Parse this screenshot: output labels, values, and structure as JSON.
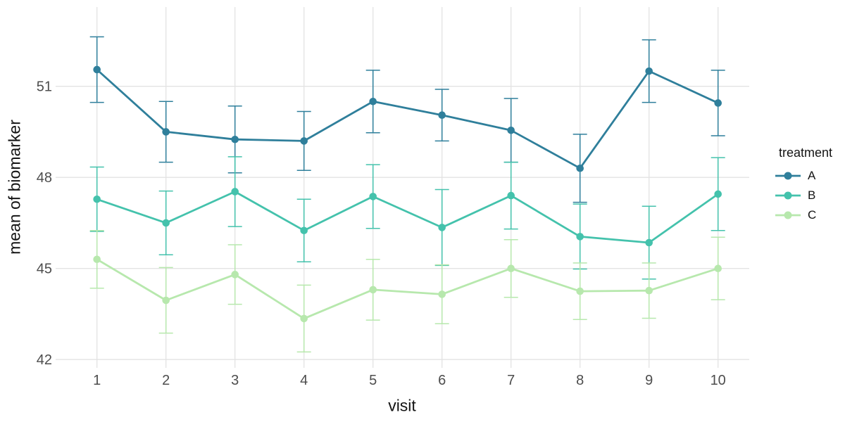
{
  "chart_data": {
    "type": "line",
    "title": "",
    "xlabel": "visit",
    "ylabel": "mean of biomarker",
    "legend_title": "treatment",
    "legend_position": "right",
    "grid": "major-only",
    "x": [
      1,
      2,
      3,
      4,
      5,
      6,
      7,
      8,
      9,
      10
    ],
    "x_tick_labels": [
      "1",
      "2",
      "3",
      "4",
      "5",
      "6",
      "7",
      "8",
      "9",
      "10"
    ],
    "y_ticks": [
      42,
      45,
      48,
      51
    ],
    "ylim": [
      41.7,
      53.6
    ],
    "xlim": [
      0.55,
      10.45
    ],
    "error_bars": true,
    "colors": {
      "grid": "#e3e3e3",
      "tick_text": "#4d4d4d",
      "axis_title_text": "#141414",
      "background": "#ffffff"
    },
    "series": [
      {
        "name": "A",
        "color": "#2f7f9b",
        "values": [
          51.55,
          49.5,
          49.25,
          49.2,
          50.5,
          50.05,
          49.55,
          48.3,
          51.5,
          50.45
        ],
        "errors": [
          1.08,
          1.0,
          1.1,
          0.97,
          1.03,
          0.85,
          1.05,
          1.12,
          1.03,
          1.08
        ]
      },
      {
        "name": "B",
        "color": "#44c2ac",
        "values": [
          47.28,
          46.5,
          47.53,
          46.25,
          47.37,
          46.35,
          47.4,
          46.05,
          45.85,
          47.45
        ],
        "errors": [
          1.06,
          1.05,
          1.15,
          1.03,
          1.05,
          1.25,
          1.1,
          1.07,
          1.2,
          1.2
        ]
      },
      {
        "name": "C",
        "color": "#b7e8ad",
        "values": [
          45.3,
          43.95,
          44.8,
          43.35,
          44.3,
          44.15,
          45.0,
          44.25,
          44.27,
          45.0
        ],
        "errors": [
          0.95,
          1.08,
          0.98,
          1.1,
          1.0,
          0.97,
          0.95,
          0.93,
          0.91,
          1.03
        ]
      }
    ]
  }
}
